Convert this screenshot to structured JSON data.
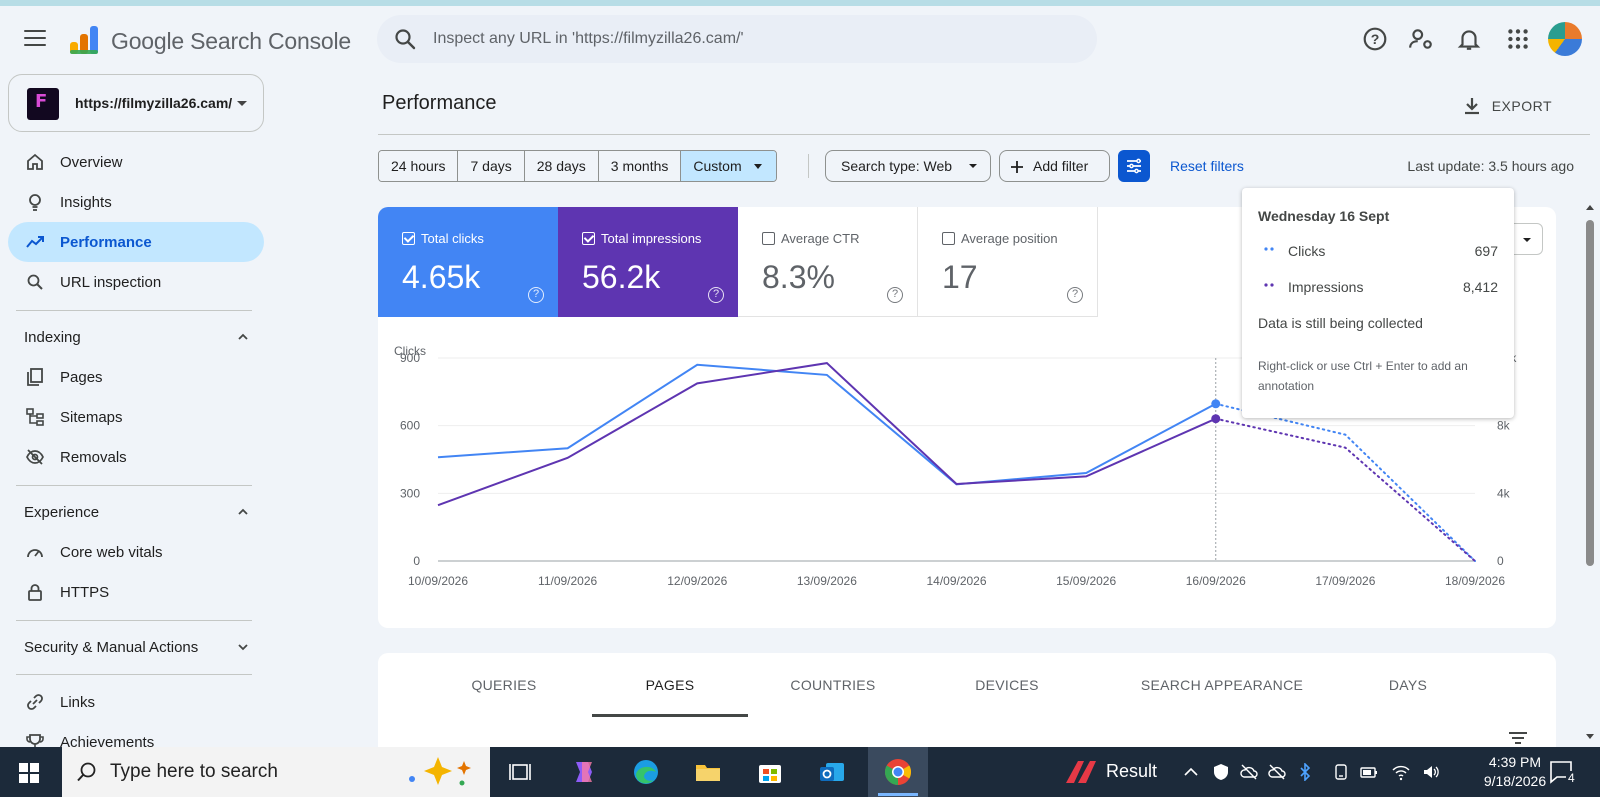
{
  "app": {
    "brand": "Google Search Console"
  },
  "search": {
    "placeholder": "Inspect any URL in 'https://filmyzilla26.cam/'"
  },
  "property": {
    "url": "https://filmyzilla26.cam/"
  },
  "sidebar": {
    "items": [
      {
        "label": "Overview",
        "icon": "home-icon"
      },
      {
        "label": "Insights",
        "icon": "lightbulb-icon"
      },
      {
        "label": "Performance",
        "icon": "trending-icon",
        "active": true
      },
      {
        "label": "URL inspection",
        "icon": "search-icon"
      }
    ],
    "indexing": {
      "title": "Indexing",
      "items": [
        {
          "label": "Pages",
          "icon": "pages-icon"
        },
        {
          "label": "Sitemaps",
          "icon": "sitemap-icon"
        },
        {
          "label": "Removals",
          "icon": "eye-off-icon"
        }
      ]
    },
    "experience": {
      "title": "Experience",
      "items": [
        {
          "label": "Core web vitals",
          "icon": "speedometer-icon"
        },
        {
          "label": "HTTPS",
          "icon": "lock-icon"
        }
      ]
    },
    "security": {
      "title": "Security & Manual Actions"
    },
    "bottom": [
      {
        "label": "Links",
        "icon": "link-icon"
      },
      {
        "label": "Achievements",
        "icon": "trophy-icon"
      }
    ]
  },
  "page": {
    "title": "Performance",
    "export_label": "EXPORT"
  },
  "filters": {
    "ranges": [
      "24 hours",
      "7 days",
      "28 days",
      "3 months",
      "Custom"
    ],
    "selected_range": "Custom",
    "search_type": "Search type: Web",
    "add_filter": "Add filter",
    "reset": "Reset filters",
    "last_update": "Last update: 3.5 hours ago"
  },
  "metrics": [
    {
      "label": "Total clicks",
      "value": "4.65k",
      "checked": true,
      "color": "#4285f4"
    },
    {
      "label": "Total impressions",
      "value": "56.2k",
      "checked": true,
      "color": "#5e35b1"
    },
    {
      "label": "Average CTR",
      "value": "8.3%",
      "checked": false
    },
    {
      "label": "Average position",
      "value": "17",
      "checked": false
    }
  ],
  "tooltip": {
    "date": "Wednesday 16 Sept",
    "rows": [
      {
        "label": "Clicks",
        "value": "697"
      },
      {
        "label": "Impressions",
        "value": "8,412"
      }
    ],
    "note": "Data is still being collected",
    "hint": "Right-click or use Ctrl + Enter to add an annotation"
  },
  "chart_data": {
    "type": "line",
    "x": [
      "10/09/2026",
      "11/09/2026",
      "12/09/2026",
      "13/09/2026",
      "14/09/2026",
      "15/09/2026",
      "16/09/2026",
      "17/09/2026",
      "18/09/2026"
    ],
    "series": [
      {
        "name": "Clicks",
        "axis": "left",
        "color": "#4285f4",
        "values": [
          460,
          500,
          870,
          825,
          340,
          390,
          697,
          560,
          0
        ]
      },
      {
        "name": "Impressions",
        "axis": "right",
        "color": "#5e35b1",
        "values": [
          3300,
          6100,
          10500,
          11700,
          4550,
          5000,
          8412,
          6700,
          0
        ]
      }
    ],
    "incomplete_from_index": 6,
    "hover_index": 6,
    "ylabel_left": "Clicks",
    "ylim_left": [
      0,
      900
    ],
    "yticks_left": [
      "0",
      "300",
      "600",
      "900"
    ],
    "ylim_right": [
      0,
      12000
    ],
    "yticks_right": [
      "0",
      "4k",
      "8k",
      "12k"
    ]
  },
  "tabs": [
    "QUERIES",
    "PAGES",
    "COUNTRIES",
    "DEVICES",
    "SEARCH APPEARANCE",
    "DAYS"
  ],
  "active_tab": "PAGES",
  "taskbar": {
    "search_placeholder": "Type here to search",
    "result_label": "Result",
    "time": "4:39 PM",
    "date": "9/18/2026",
    "notifications": "4"
  }
}
